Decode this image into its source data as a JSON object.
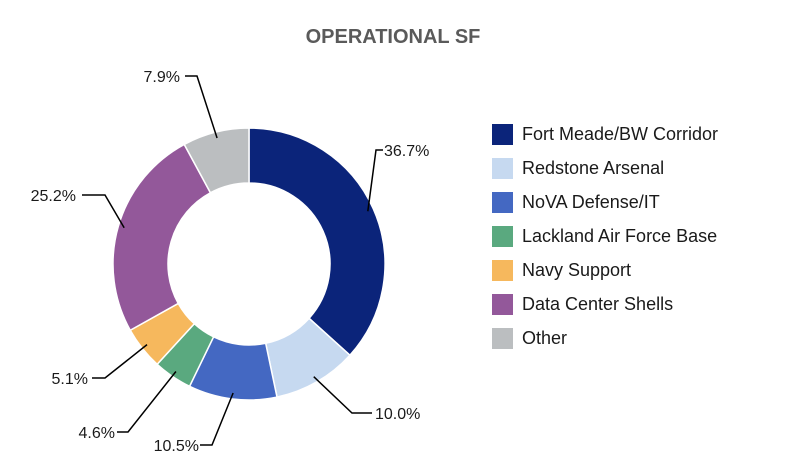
{
  "chart_data": {
    "type": "pie",
    "donut": true,
    "title": "OPERATIONAL SF",
    "legend_position": "right",
    "slices": [
      {
        "label": "Fort Meade/BW Corridor",
        "value": 36.7,
        "display": "36.7%",
        "color": "#0b247a"
      },
      {
        "label": "Redstone Arsenal",
        "value": 10.0,
        "display": "10.0%",
        "color": "#c6d9f0"
      },
      {
        "label": "NoVA Defense/IT",
        "value": 10.5,
        "display": "10.5%",
        "color": "#4468c2"
      },
      {
        "label": "Lackland Air Force Base",
        "value": 4.6,
        "display": "4.6%",
        "color": "#5aa97f"
      },
      {
        "label": "Navy Support",
        "value": 5.1,
        "display": "5.1%",
        "color": "#f6b85d"
      },
      {
        "label": "Data Center Shells",
        "value": 25.2,
        "display": "25.2%",
        "color": "#93589a"
      },
      {
        "label": "Other",
        "value": 7.9,
        "display": "7.9%",
        "color": "#bbbec0"
      }
    ]
  }
}
